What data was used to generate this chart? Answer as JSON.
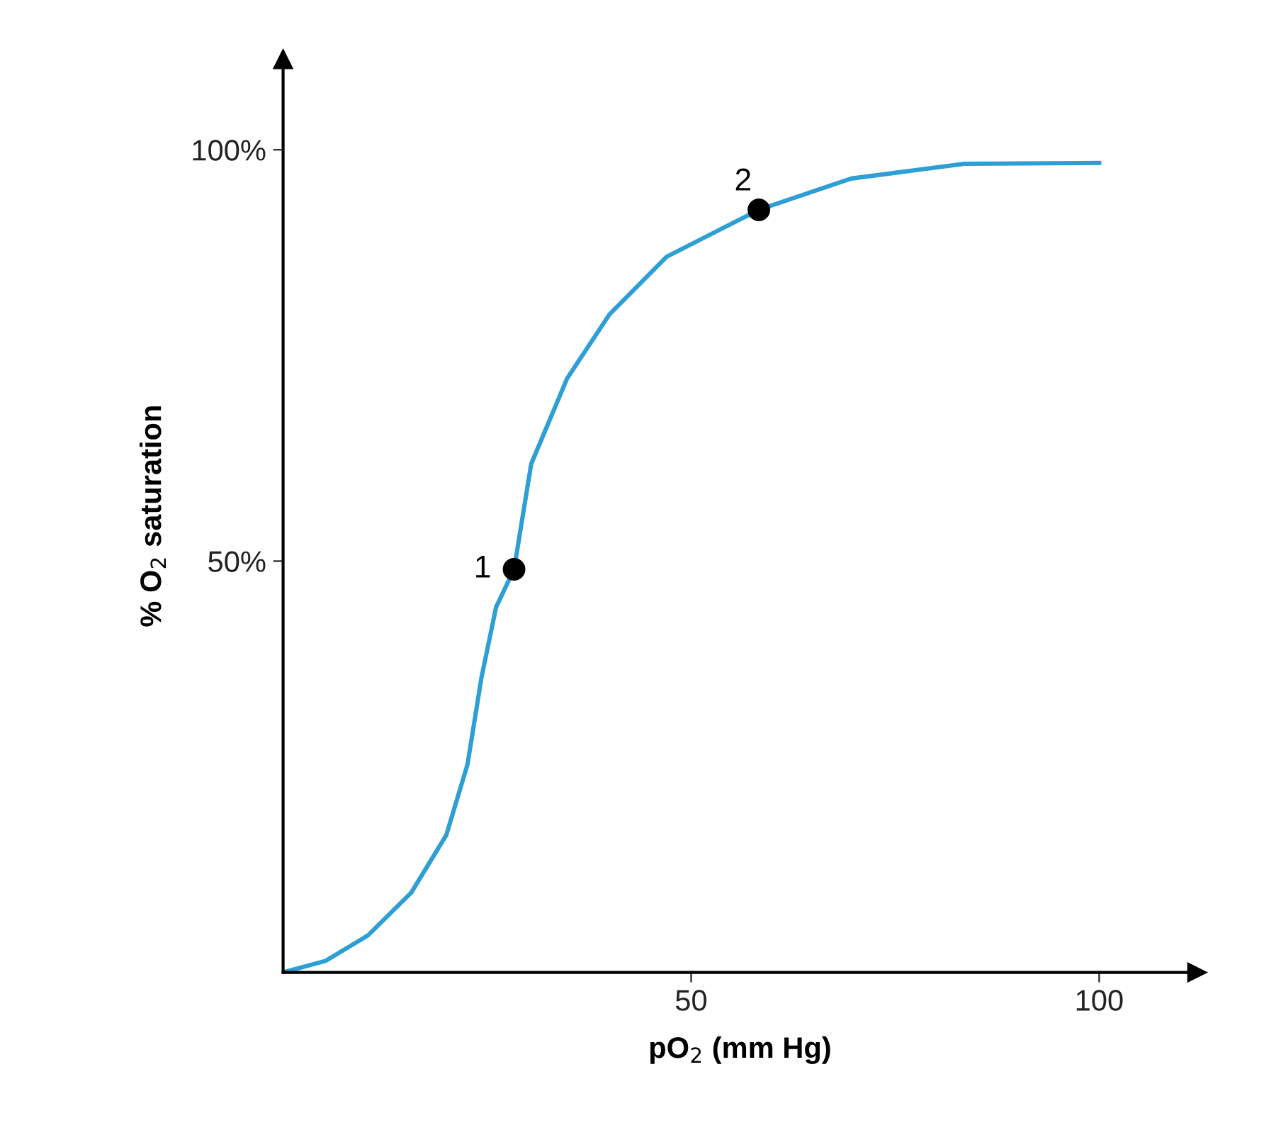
{
  "chart_data": {
    "type": "line",
    "xlabel": "pO$_{2}$ (mm Hg)",
    "ylabel": "% O$_{2}$ saturation",
    "xlim": [
      0,
      112
    ],
    "ylim": [
      0,
      111
    ],
    "xticks": [
      50,
      100
    ],
    "yticks": [
      {
        "value": 50,
        "label": "50%"
      },
      {
        "value": 100,
        "label": "100%"
      }
    ],
    "grid": false,
    "legend": false,
    "series": [
      {
        "color": "#2e9fd4",
        "marker": "none",
        "x": [
          0,
          5.2,
          10.4,
          15.7,
          20,
          22.6,
          24.3,
          26.1,
          28.3,
          30.4,
          34.8,
          40,
          47,
          58.3,
          69.6,
          83.5,
          100
        ],
        "values": [
          0,
          1.4,
          4.5,
          9.7,
          16.7,
          25.3,
          35.8,
          44.4,
          49,
          61.8,
          72.2,
          80,
          87,
          92.7,
          96.5,
          98.3,
          98.4
        ]
      },
      {
        "type": "scatter",
        "color": "#000000",
        "marker": "circle",
        "x": [
          28.3,
          58.3
        ],
        "values": [
          49,
          92.7
        ]
      }
    ],
    "annotations": [
      {
        "text": "1",
        "x": 28.3,
        "y": 49
      },
      {
        "text": "2",
        "x": 58.3,
        "y": 92.7
      }
    ]
  }
}
